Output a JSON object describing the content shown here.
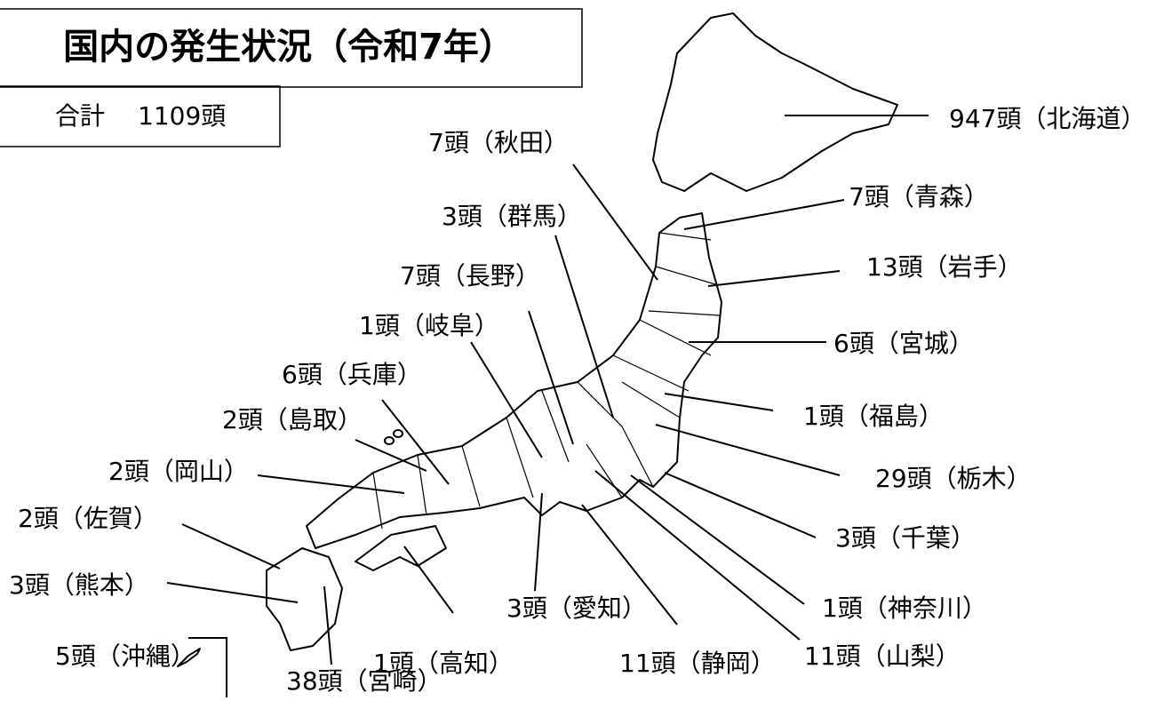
{
  "header": {
    "title": "国内の発生状況（令和7年）"
  },
  "total": {
    "label": "合計",
    "value": "1109頭"
  },
  "regions": [
    "947頭（北海道）",
    "7頭（秋田）",
    "7頭（青森）",
    "3頭（群馬）",
    "13頭（岩手）",
    "7頭（長野）",
    "1頭（岐阜）",
    "6頭（宮城）",
    "6頭（兵庫）",
    "2頭（島取）",
    "1頭（福島）",
    "29頭（栃木）",
    "2頭（岡山）",
    "3頭（千葉）",
    "2頭（佐賀）",
    "3頭（熊本）",
    "1頭（神奈川）",
    "3頭（愛知）",
    "11頭（静岡）",
    "11頭（山梨）",
    "1頭（高知）",
    "38頭（宮崎）",
    "5頭（沖縄）"
  ]
}
